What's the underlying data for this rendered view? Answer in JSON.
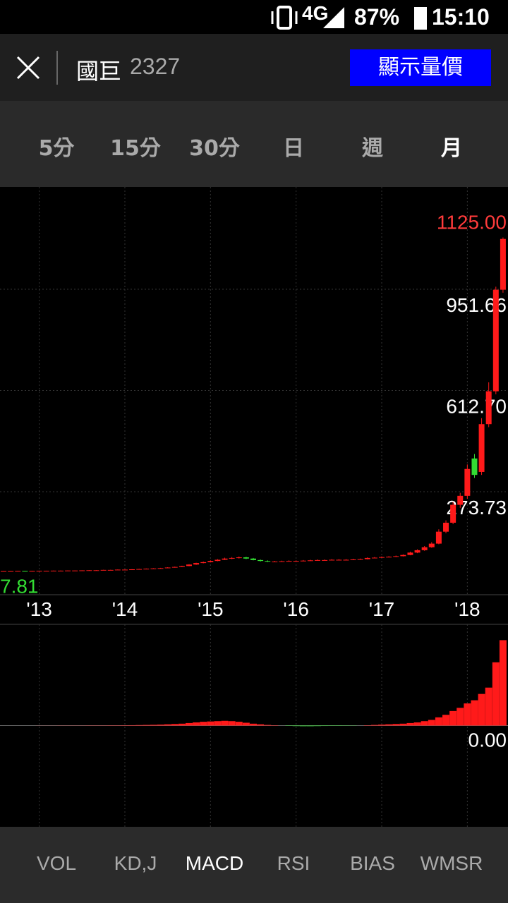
{
  "status": {
    "battery": "87%",
    "time": "15:10"
  },
  "header": {
    "name": "國巨",
    "code": "2327",
    "button": "顯示量價"
  },
  "period_tabs": [
    "5分",
    "15分",
    "30分",
    "日",
    "週",
    "月"
  ],
  "indicator_tabs": [
    "VOL",
    "KD,J",
    "MACD",
    "RSI",
    "BIAS",
    "WMSR"
  ],
  "chart_data": {
    "type": "candlestick",
    "candles": [
      [
        7.81,
        8.3,
        7.81,
        8
      ],
      [
        8,
        8.4,
        7.9,
        8
      ],
      [
        8,
        8.7,
        7.9,
        8.5
      ],
      [
        8.5,
        8.7,
        7.9,
        8
      ],
      [
        8,
        8.8,
        7.9,
        8.5
      ],
      [
        8.5,
        9.3,
        8.3,
        9
      ],
      [
        9,
        9.4,
        8.8,
        9
      ],
      [
        9,
        9.8,
        8.9,
        9.5
      ],
      [
        9.5,
        9.9,
        9.2,
        9.5
      ],
      [
        9.5,
        10.3,
        9.4,
        10
      ],
      [
        10,
        10.4,
        9.7,
        10
      ],
      [
        10,
        10.8,
        9.9,
        10.5
      ],
      [
        10.5,
        11.4,
        10.3,
        11
      ],
      [
        11,
        11.5,
        10.7,
        11
      ],
      [
        11,
        12.4,
        10.9,
        12
      ],
      [
        12,
        12.5,
        11.6,
        12
      ],
      [
        12,
        13.5,
        11.9,
        13
      ],
      [
        13,
        13.6,
        12.5,
        13
      ],
      [
        13,
        14.6,
        12.8,
        14
      ],
      [
        14,
        15.7,
        13.8,
        15
      ],
      [
        15,
        16.8,
        14.7,
        16
      ],
      [
        16,
        17.9,
        15.6,
        17
      ],
      [
        17,
        18.9,
        16.5,
        18
      ],
      [
        18,
        21,
        17.6,
        20
      ],
      [
        20,
        23,
        19.5,
        22
      ],
      [
        22,
        26,
        21.5,
        25
      ],
      [
        25,
        31,
        24.5,
        30
      ],
      [
        30,
        36,
        29,
        35
      ],
      [
        35,
        40,
        34,
        38
      ],
      [
        38,
        44,
        37,
        42
      ],
      [
        42,
        48,
        41,
        46
      ],
      [
        46,
        53,
        45,
        50
      ],
      [
        50,
        55,
        48,
        52
      ],
      [
        52,
        57,
        50,
        54
      ],
      [
        54,
        56,
        48,
        50
      ],
      [
        50,
        52,
        44,
        45
      ],
      [
        45,
        47,
        40,
        42
      ],
      [
        42,
        44,
        38,
        40
      ],
      [
        40,
        42,
        38,
        40
      ],
      [
        40,
        43,
        39,
        41
      ],
      [
        41,
        44,
        40,
        42
      ],
      [
        42,
        44,
        41,
        42
      ],
      [
        42,
        45,
        41,
        43
      ],
      [
        43,
        46,
        42,
        44
      ],
      [
        44,
        47,
        43,
        45
      ],
      [
        45,
        47,
        44,
        45
      ],
      [
        45,
        48,
        44,
        46
      ],
      [
        46,
        48,
        45,
        46
      ],
      [
        46,
        48,
        45,
        46
      ],
      [
        46,
        49,
        45,
        47
      ],
      [
        47,
        50,
        46,
        48
      ],
      [
        48,
        54,
        47,
        52
      ],
      [
        52,
        55,
        51,
        53
      ],
      [
        53,
        57,
        52,
        55
      ],
      [
        55,
        58,
        54,
        56
      ],
      [
        56,
        60,
        55,
        58
      ],
      [
        58,
        64,
        57,
        62
      ],
      [
        62,
        73,
        61,
        70
      ],
      [
        70,
        81,
        68,
        78
      ],
      [
        78,
        92,
        76,
        88
      ],
      [
        88,
        105,
        86,
        100
      ],
      [
        100,
        148,
        98,
        140
      ],
      [
        140,
        178,
        135,
        170
      ],
      [
        170,
        240,
        165,
        230
      ],
      [
        230,
        270,
        220,
        260
      ],
      [
        260,
        365,
        250,
        350
      ],
      [
        385,
        400,
        320,
        330
      ],
      [
        340,
        520,
        330,
        500
      ],
      [
        500,
        640,
        490,
        610
      ],
      [
        610,
        960,
        600,
        950
      ],
      [
        950,
        1125,
        940,
        1120
      ]
    ],
    "up_color": "#ff1a1a",
    "down_color": "#33dd33",
    "xlim": [
      -0.5,
      70.7
    ],
    "xticks": [
      {
        "value": 5,
        "label": "'13"
      },
      {
        "value": 17,
        "label": "'14"
      },
      {
        "value": 29,
        "label": "'15"
      },
      {
        "value": 41,
        "label": "'16"
      },
      {
        "value": 53,
        "label": "'17"
      },
      {
        "value": 65,
        "label": "'18"
      }
    ],
    "ylim": [
      -71,
      1294
    ],
    "yticks": [
      951.66,
      {
        "value": 612.7,
        "label": "612.70"
      },
      273.73
    ],
    "max_price": {
      "value": 1125,
      "label": "1125.00"
    },
    "min_price": 7.81,
    "grid": true,
    "macd": {
      "values": [
        0,
        0,
        0,
        0,
        0,
        0.1,
        0.1,
        0.1,
        0.2,
        0.2,
        0.2,
        0.2,
        0.3,
        0.3,
        0.3,
        0.4,
        0.4,
        0.5,
        0.6,
        0.8,
        1,
        1.2,
        1.5,
        2,
        2.5,
        3,
        4,
        5,
        6,
        6.5,
        7,
        7.5,
        7,
        6,
        4.5,
        3,
        2,
        1,
        0.5,
        0,
        -0.5,
        -0.8,
        -1,
        -1,
        -0.8,
        -0.6,
        -0.5,
        -0.5,
        -0.4,
        -0.3,
        0,
        0.5,
        1,
        1.5,
        2,
        2.5,
        3,
        4,
        5,
        7,
        9,
        13,
        17,
        23,
        28,
        35,
        40,
        50,
        60,
        100,
        135
      ],
      "ylim": [
        -160,
        160
      ],
      "yticks": [
        {
          "value": 0,
          "label": "0.00"
        }
      ]
    }
  }
}
